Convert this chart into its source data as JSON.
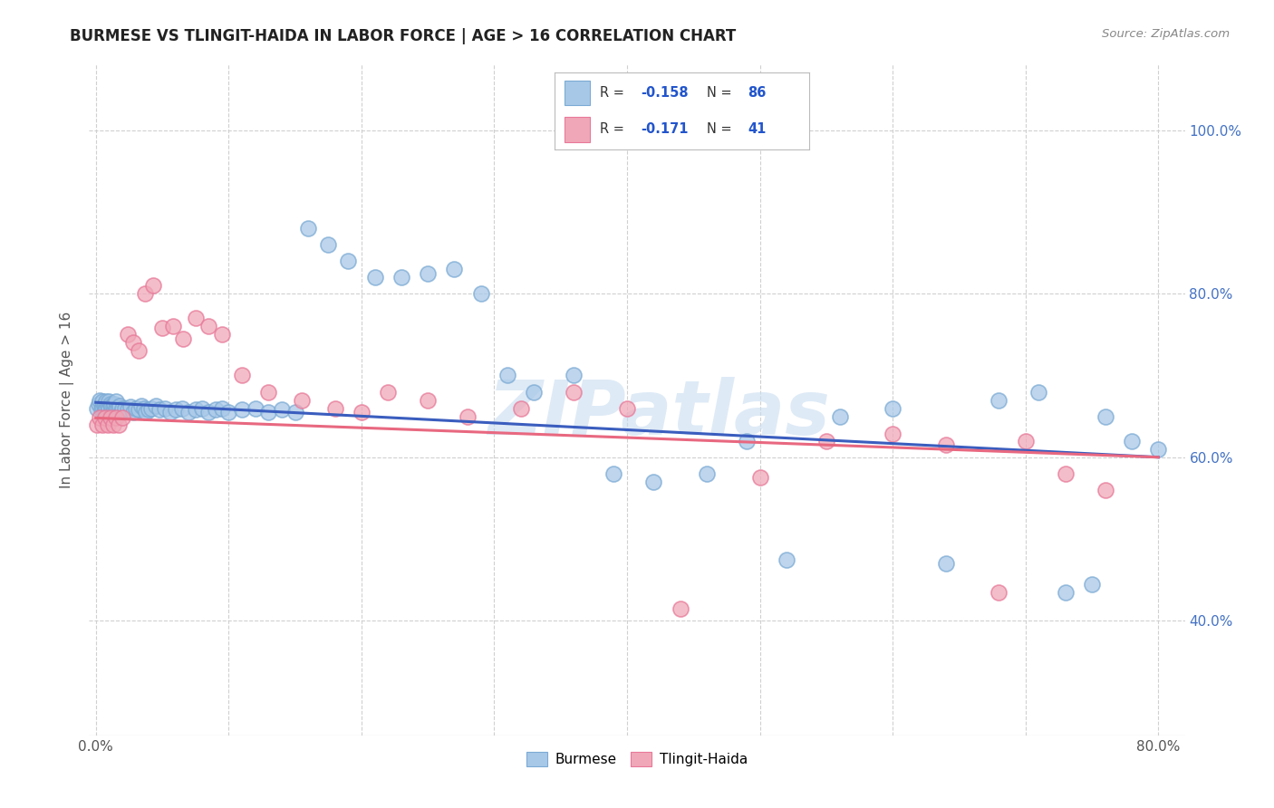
{
  "title": "BURMESE VS TLINGIT-HAIDA IN LABOR FORCE | AGE > 16 CORRELATION CHART",
  "source": "Source: ZipAtlas.com",
  "ylabel": "In Labor Force | Age > 16",
  "xlim": [
    -0.005,
    0.82
  ],
  "ylim": [
    0.26,
    1.08
  ],
  "burmese_color": "#a8c8e8",
  "tlingit_color": "#f0a8b8",
  "burmese_edge_color": "#7baad4",
  "tlingit_edge_color": "#e87898",
  "burmese_line_color": "#3a5dbe",
  "tlingit_line_color": "#e86880",
  "background_color": "#ffffff",
  "grid_color": "#d0d0d0",
  "watermark": "ZIPatlas",
  "watermark_color": "#c8ddf0",
  "right_tick_color": "#4472c4",
  "burmese_x": [
    0.001,
    0.002,
    0.003,
    0.004,
    0.005,
    0.005,
    0.006,
    0.006,
    0.007,
    0.007,
    0.008,
    0.008,
    0.009,
    0.009,
    0.01,
    0.01,
    0.011,
    0.011,
    0.012,
    0.012,
    0.013,
    0.013,
    0.014,
    0.014,
    0.015,
    0.015,
    0.016,
    0.017,
    0.018,
    0.019,
    0.02,
    0.022,
    0.024,
    0.026,
    0.028,
    0.03,
    0.032,
    0.034,
    0.036,
    0.038,
    0.04,
    0.042,
    0.045,
    0.048,
    0.052,
    0.056,
    0.06,
    0.065,
    0.07,
    0.075,
    0.08,
    0.085,
    0.09,
    0.095,
    0.1,
    0.11,
    0.12,
    0.13,
    0.14,
    0.15,
    0.16,
    0.175,
    0.19,
    0.21,
    0.23,
    0.25,
    0.27,
    0.29,
    0.31,
    0.33,
    0.36,
    0.39,
    0.42,
    0.46,
    0.49,
    0.52,
    0.56,
    0.6,
    0.64,
    0.68,
    0.71,
    0.73,
    0.75,
    0.76,
    0.78,
    0.8
  ],
  "burmese_y": [
    0.66,
    0.665,
    0.67,
    0.658,
    0.662,
    0.668,
    0.655,
    0.663,
    0.658,
    0.665,
    0.66,
    0.668,
    0.655,
    0.663,
    0.66,
    0.668,
    0.655,
    0.665,
    0.658,
    0.663,
    0.655,
    0.662,
    0.658,
    0.665,
    0.66,
    0.668,
    0.658,
    0.66,
    0.663,
    0.655,
    0.66,
    0.66,
    0.658,
    0.662,
    0.655,
    0.66,
    0.658,
    0.663,
    0.66,
    0.655,
    0.658,
    0.66,
    0.663,
    0.658,
    0.66,
    0.655,
    0.658,
    0.66,
    0.655,
    0.658,
    0.66,
    0.655,
    0.658,
    0.66,
    0.655,
    0.658,
    0.66,
    0.655,
    0.658,
    0.655,
    0.88,
    0.86,
    0.84,
    0.82,
    0.82,
    0.825,
    0.83,
    0.8,
    0.7,
    0.68,
    0.7,
    0.58,
    0.57,
    0.58,
    0.62,
    0.475,
    0.65,
    0.66,
    0.47,
    0.67,
    0.68,
    0.435,
    0.445,
    0.65,
    0.62,
    0.61
  ],
  "tlingit_x": [
    0.001,
    0.003,
    0.005,
    0.007,
    0.009,
    0.011,
    0.013,
    0.015,
    0.017,
    0.02,
    0.024,
    0.028,
    0.032,
    0.037,
    0.043,
    0.05,
    0.058,
    0.066,
    0.075,
    0.085,
    0.095,
    0.11,
    0.13,
    0.155,
    0.18,
    0.2,
    0.22,
    0.25,
    0.28,
    0.32,
    0.36,
    0.4,
    0.44,
    0.5,
    0.55,
    0.6,
    0.64,
    0.68,
    0.7,
    0.73,
    0.76
  ],
  "tlingit_y": [
    0.64,
    0.648,
    0.64,
    0.648,
    0.64,
    0.648,
    0.64,
    0.648,
    0.64,
    0.648,
    0.75,
    0.74,
    0.73,
    0.8,
    0.81,
    0.758,
    0.76,
    0.745,
    0.77,
    0.76,
    0.75,
    0.7,
    0.68,
    0.67,
    0.66,
    0.655,
    0.68,
    0.67,
    0.65,
    0.66,
    0.68,
    0.66,
    0.415,
    0.575,
    0.62,
    0.628,
    0.615,
    0.435,
    0.62,
    0.58,
    0.56
  ]
}
